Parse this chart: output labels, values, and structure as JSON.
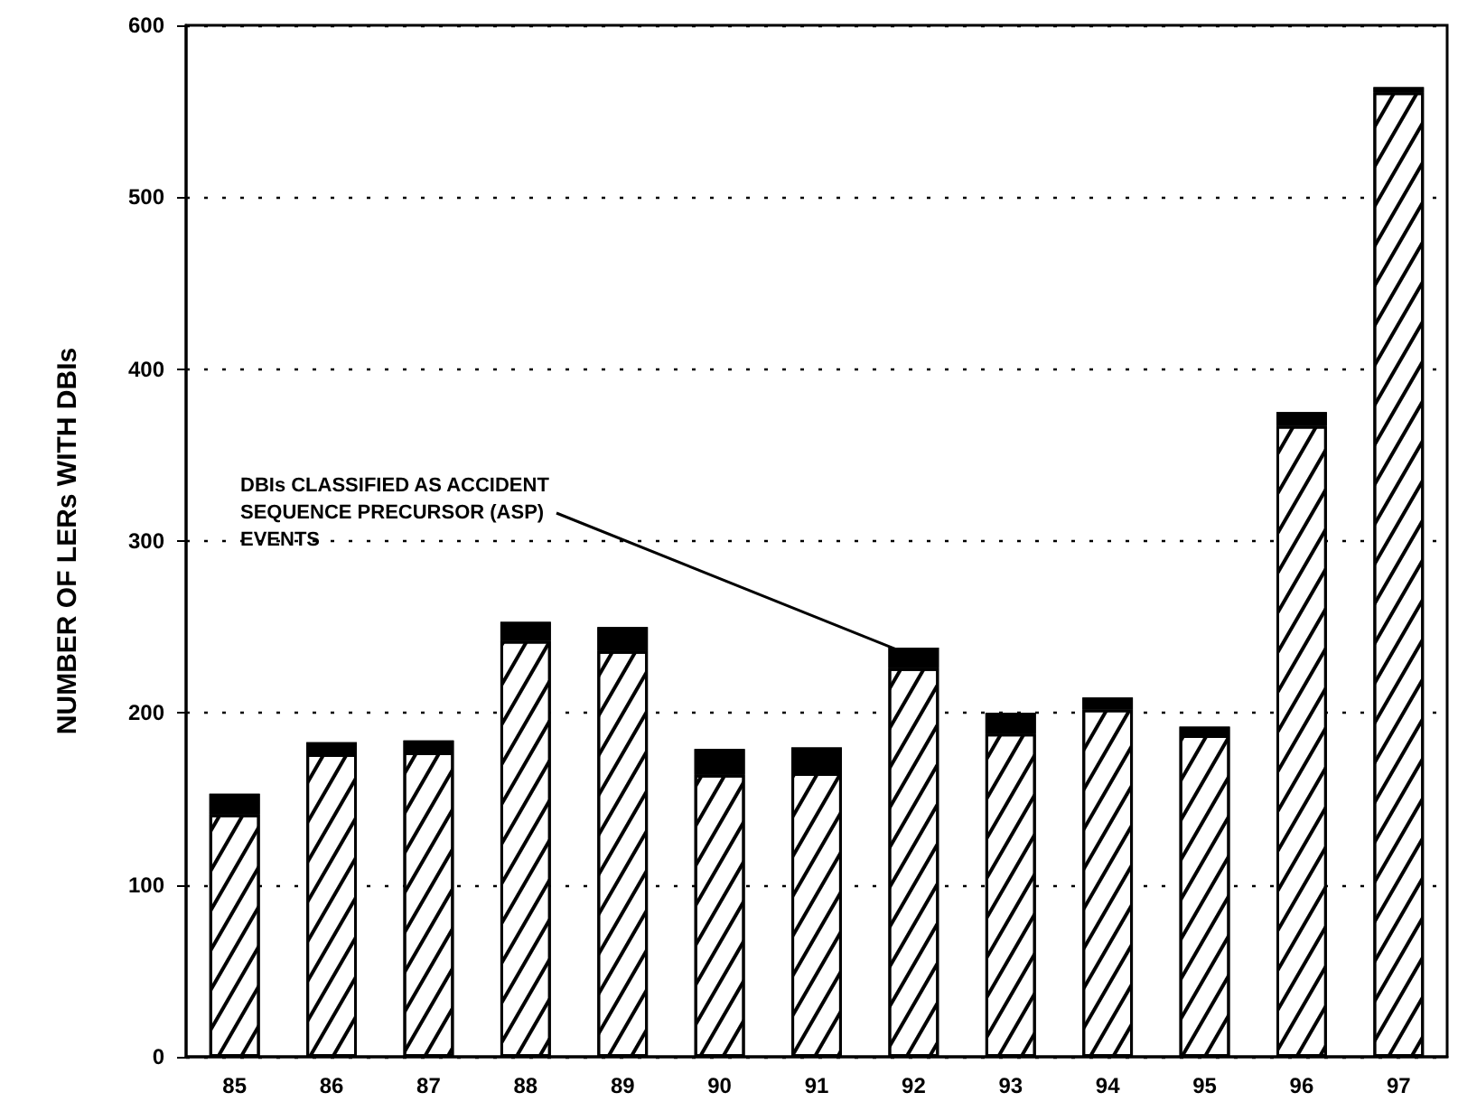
{
  "chart_data": {
    "type": "bar",
    "ylabel": "NUMBER OF LERs WITH DBIs",
    "categories": [
      "85",
      "86",
      "87",
      "88",
      "89",
      "90",
      "91",
      "92",
      "93",
      "94",
      "95",
      "96",
      "97"
    ],
    "stacked": true,
    "series": [
      {
        "color": "#ffffff",
        "values": [
          141,
          176,
          177,
          242,
          236,
          164,
          165,
          226,
          188,
          202,
          187,
          367,
          561
        ]
      },
      {
        "color": "#000000",
        "values": [
          12,
          7,
          7,
          11,
          14,
          15,
          15,
          12,
          12,
          7,
          5,
          8,
          3
        ]
      }
    ],
    "ylim": [
      0,
      600
    ],
    "yticks": [
      0,
      100,
      200,
      300,
      400,
      500,
      600
    ],
    "grid": "y",
    "annotations": [
      {
        "text": "DBIs CLASSIFIED AS ACCIDENT\nSEQUENCE PRECURSOR (ASP)\nEVENTS",
        "x": "92",
        "y": 233
      }
    ]
  }
}
